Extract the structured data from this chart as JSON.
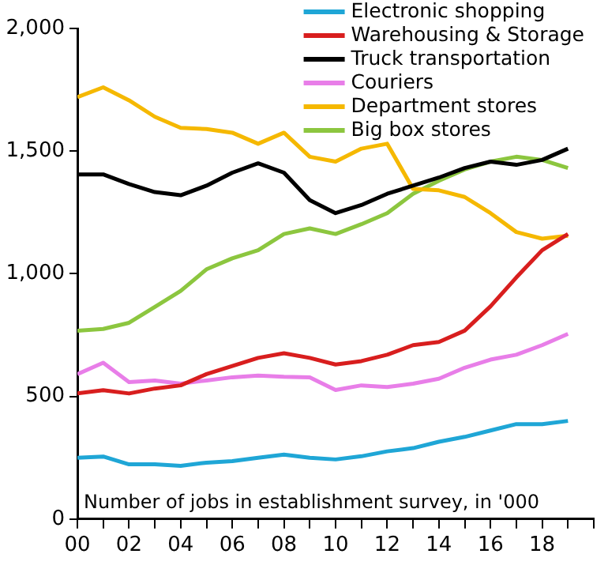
{
  "chart_data": {
    "type": "line",
    "x": [
      2000,
      2001,
      2002,
      2003,
      2004,
      2005,
      2006,
      2007,
      2008,
      2009,
      2010,
      2011,
      2012,
      2013,
      2014,
      2015,
      2016,
      2017,
      2018,
      2019
    ],
    "series": [
      {
        "name": "Electronic shopping",
        "color": "#1fa6d6",
        "values": [
          250,
          255,
          223,
          223,
          217,
          230,
          236,
          250,
          263,
          250,
          243,
          256,
          276,
          289,
          315,
          335,
          361,
          387,
          387,
          400
        ]
      },
      {
        "name": "Warehousing & Storage",
        "color": "#d81e1e",
        "values": [
          512,
          525,
          512,
          532,
          545,
          591,
          624,
          657,
          676,
          657,
          630,
          644,
          670,
          709,
          722,
          768,
          867,
          985,
          1096,
          1162
        ]
      },
      {
        "name": "Truck transportation",
        "color": "#000000",
        "values": [
          1405,
          1405,
          1366,
          1333,
          1320,
          1359,
          1412,
          1450,
          1412,
          1300,
          1247,
          1280,
          1326,
          1359,
          1392,
          1431,
          1457,
          1444,
          1464,
          1510
        ]
      },
      {
        "name": "Couriers",
        "color": "#e87ee8",
        "values": [
          591,
          637,
          558,
          565,
          552,
          565,
          578,
          585,
          580,
          578,
          526,
          545,
          538,
          552,
          572,
          617,
          650,
          670,
          709,
          755
        ]
      },
      {
        "name": "Department stores",
        "color": "#f5b800",
        "values": [
          1720,
          1760,
          1707,
          1640,
          1595,
          1590,
          1575,
          1530,
          1575,
          1477,
          1457,
          1510,
          1530,
          1346,
          1340,
          1313,
          1247,
          1170,
          1143,
          1155
        ]
      },
      {
        "name": "Big box stores",
        "color": "#8cc63f",
        "values": [
          768,
          775,
          800,
          865,
          930,
          1018,
          1063,
          1096,
          1162,
          1185,
          1162,
          1202,
          1247,
          1326,
          1379,
          1425,
          1457,
          1477,
          1464,
          1431
        ]
      }
    ],
    "xlim": [
      2000,
      2020
    ],
    "xticks": [
      {
        "value": 2000,
        "label": "00"
      },
      {
        "value": 2001,
        "label": null
      },
      {
        "value": 2002,
        "label": "02"
      },
      {
        "value": 2003,
        "label": null
      },
      {
        "value": 2004,
        "label": "04"
      },
      {
        "value": 2005,
        "label": null
      },
      {
        "value": 2006,
        "label": "06"
      },
      {
        "value": 2007,
        "label": null
      },
      {
        "value": 2008,
        "label": "08"
      },
      {
        "value": 2009,
        "label": null
      },
      {
        "value": 2010,
        "label": "10"
      },
      {
        "value": 2011,
        "label": null
      },
      {
        "value": 2012,
        "label": "12"
      },
      {
        "value": 2013,
        "label": null
      },
      {
        "value": 2014,
        "label": "14"
      },
      {
        "value": 2015,
        "label": null
      },
      {
        "value": 2016,
        "label": "16"
      },
      {
        "value": 2017,
        "label": null
      },
      {
        "value": 2018,
        "label": "18"
      },
      {
        "value": 2019,
        "label": null
      },
      {
        "value": 2020,
        "label": null
      }
    ],
    "ylim": [
      0,
      2000
    ],
    "yticks": [
      0,
      500,
      {
        "value": 1000,
        "label": "1,000"
      },
      {
        "value": 1500,
        "label": "1,500"
      },
      {
        "value": 2000,
        "label": "2,000"
      }
    ],
    "annotations": [
      "Number of jobs in establishment survey, in '000"
    ],
    "grid": false,
    "legend": "top right",
    "marker": "none",
    "line_style": "solid"
  }
}
